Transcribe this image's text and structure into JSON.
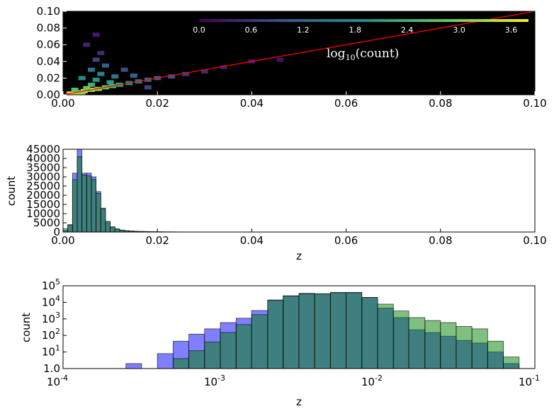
{
  "chart_data": [
    {
      "type": "heatmap",
      "xlim": [
        0.0,
        0.1
      ],
      "ylim": [
        0.0,
        0.1
      ],
      "xticks": [
        "0.00",
        "0.02",
        "0.04",
        "0.06",
        "0.08",
        "0.10"
      ],
      "yticks": [
        "0.00",
        "0.02",
        "0.04",
        "0.06",
        "0.08",
        "0.10"
      ],
      "background": "#000000",
      "reference_line": {
        "x": [
          0.0,
          0.1
        ],
        "y": [
          0.0,
          0.1
        ],
        "color": "#ff0000"
      },
      "colorbar": {
        "label_main": "log",
        "label_sub": "10",
        "label_rest": "(count)",
        "ticks": [
          "0.0",
          "0.6",
          "1.2",
          "1.8",
          "2.4",
          "3.0",
          "3.6"
        ],
        "range": [
          0.0,
          3.8
        ]
      },
      "density_cells": [
        {
          "x": 0.0015,
          "y": 0.0015,
          "v": 3.6
        },
        {
          "x": 0.003,
          "y": 0.003,
          "v": 3.4
        },
        {
          "x": 0.0045,
          "y": 0.0045,
          "v": 3.5
        },
        {
          "x": 0.006,
          "y": 0.006,
          "v": 3.3
        },
        {
          "x": 0.0075,
          "y": 0.007,
          "v": 3.1
        },
        {
          "x": 0.009,
          "y": 0.009,
          "v": 2.8
        },
        {
          "x": 0.0105,
          "y": 0.0105,
          "v": 2.5
        },
        {
          "x": 0.012,
          "y": 0.012,
          "v": 2.2
        },
        {
          "x": 0.014,
          "y": 0.014,
          "v": 1.9
        },
        {
          "x": 0.016,
          "y": 0.016,
          "v": 1.6
        },
        {
          "x": 0.018,
          "y": 0.018,
          "v": 1.3
        },
        {
          "x": 0.02,
          "y": 0.02,
          "v": 1.1
        },
        {
          "x": 0.023,
          "y": 0.022,
          "v": 0.9
        },
        {
          "x": 0.026,
          "y": 0.025,
          "v": 0.7
        },
        {
          "x": 0.03,
          "y": 0.028,
          "v": 0.5
        },
        {
          "x": 0.034,
          "y": 0.033,
          "v": 0.3
        },
        {
          "x": 0.006,
          "y": 0.012,
          "v": 2.4
        },
        {
          "x": 0.007,
          "y": 0.018,
          "v": 2.0
        },
        {
          "x": 0.008,
          "y": 0.025,
          "v": 1.7
        },
        {
          "x": 0.006,
          "y": 0.03,
          "v": 1.4
        },
        {
          "x": 0.009,
          "y": 0.035,
          "v": 1.1
        },
        {
          "x": 0.007,
          "y": 0.042,
          "v": 0.8
        },
        {
          "x": 0.008,
          "y": 0.05,
          "v": 0.5
        },
        {
          "x": 0.005,
          "y": 0.008,
          "v": 2.9
        },
        {
          "x": 0.01,
          "y": 0.015,
          "v": 2.1
        },
        {
          "x": 0.011,
          "y": 0.022,
          "v": 1.5
        },
        {
          "x": 0.004,
          "y": 0.02,
          "v": 1.8
        },
        {
          "x": 0.005,
          "y": 0.06,
          "v": 0.4
        },
        {
          "x": 0.007,
          "y": 0.072,
          "v": 0.3
        },
        {
          "x": 0.013,
          "y": 0.03,
          "v": 0.9
        },
        {
          "x": 0.015,
          "y": 0.023,
          "v": 1.2
        },
        {
          "x": 0.004,
          "y": 0.003,
          "v": 3.2
        },
        {
          "x": 0.0025,
          "y": 0.006,
          "v": 2.7
        },
        {
          "x": 0.04,
          "y": 0.04,
          "v": 0.3
        },
        {
          "x": 0.046,
          "y": 0.042,
          "v": 0.2
        },
        {
          "x": 0.018,
          "y": 0.009,
          "v": 0.8
        }
      ]
    },
    {
      "type": "bar",
      "xlabel": "z",
      "ylabel": "count",
      "xlim": [
        0.0,
        0.1
      ],
      "ylim": [
        0,
        45000
      ],
      "xticks": [
        "0.00",
        "0.02",
        "0.04",
        "0.06",
        "0.08",
        "0.10"
      ],
      "yticks": [
        "0",
        "5000",
        "10000",
        "15000",
        "20000",
        "25000",
        "30000",
        "35000",
        "40000",
        "45000"
      ],
      "bin_edges_start": 0.0,
      "bin_width": 0.001,
      "series": [
        {
          "color": "#0000ff",
          "values": [
            800,
            4000,
            32000,
            45000,
            32000,
            32000,
            30000,
            22000,
            13000,
            5500,
            2500,
            1500,
            900,
            600,
            450,
            300,
            250,
            200,
            150,
            120,
            100,
            80,
            60,
            50,
            40,
            35,
            30,
            25,
            20,
            20,
            15,
            15,
            12,
            10,
            10,
            8,
            8,
            6,
            5,
            5
          ]
        },
        {
          "color": "#008000",
          "values": [
            1800,
            3800,
            28500,
            41000,
            31000,
            30500,
            28500,
            21000,
            12500,
            5800,
            2900,
            1800,
            1100,
            800,
            600,
            450,
            350,
            300,
            250,
            200,
            150,
            120,
            100,
            80,
            60,
            50,
            45,
            40,
            35,
            30,
            25,
            20,
            18,
            15,
            12,
            10,
            9,
            8,
            6,
            5
          ]
        }
      ]
    },
    {
      "type": "bar",
      "xlabel": "z",
      "ylabel": "count",
      "xscale": "log",
      "yscale": "log",
      "xlim": [
        0.0001,
        0.1
      ],
      "ylim": [
        1,
        100000
      ],
      "xticks": [
        {
          "base": "10",
          "exp": "-4"
        },
        {
          "base": "10",
          "exp": "-3"
        },
        {
          "base": "10",
          "exp": "-2"
        },
        {
          "base": "10",
          "exp": "-1"
        }
      ],
      "yticks": [
        {
          "base": "1.0",
          "exp": ""
        },
        {
          "base": "10",
          "exp": "1"
        },
        {
          "base": "10",
          "exp": "2"
        },
        {
          "base": "10",
          "exp": "3"
        },
        {
          "base": "10",
          "exp": "4"
        },
        {
          "base": "10",
          "exp": "5"
        }
      ],
      "bin_edges": [
        0.0001,
        0.000126,
        0.000158,
        0.0002,
        0.000251,
        0.000316,
        0.000398,
        0.000501,
        0.000631,
        0.000794,
        0.001,
        0.00126,
        0.00158,
        0.002,
        0.00251,
        0.00316,
        0.00398,
        0.00501,
        0.00631,
        0.00794,
        0.01,
        0.0126,
        0.0158,
        0.02,
        0.0251,
        0.0316,
        0.0398,
        0.0501,
        0.0631,
        0.0794,
        0.1
      ],
      "series": [
        {
          "color": "#0000ff",
          "values": [
            0,
            0,
            0,
            0,
            2,
            0,
            8,
            45,
            120,
            250,
            600,
            1100,
            3200,
            14000,
            25000,
            35000,
            33000,
            40000,
            40000,
            20000,
            4500,
            1200,
            220,
            150,
            90,
            50,
            35,
            10,
            2,
            0
          ]
        },
        {
          "color": "#008000",
          "values": [
            0,
            0,
            0,
            0,
            0,
            0,
            0,
            4,
            12,
            40,
            150,
            450,
            1800,
            13000,
            24000,
            33000,
            33000,
            38000,
            38000,
            19500,
            7800,
            3000,
            1200,
            800,
            600,
            350,
            250,
            45,
            5,
            0
          ]
        }
      ]
    }
  ]
}
